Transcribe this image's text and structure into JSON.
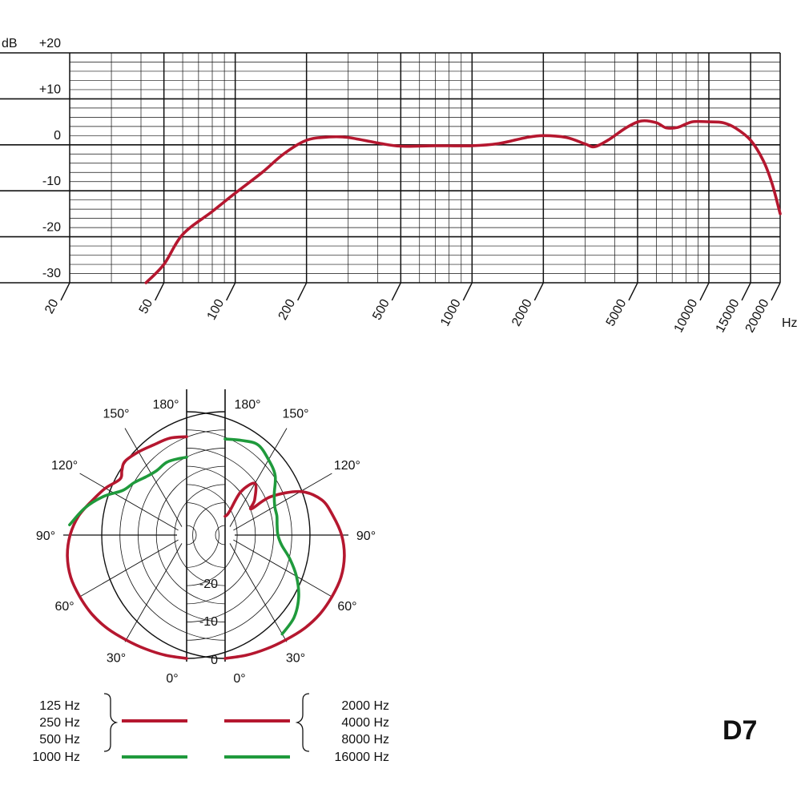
{
  "model": "D7",
  "colors": {
    "red": "#b5172f",
    "green": "#1f9a3c",
    "grid": "#111111"
  },
  "chart_data": [
    {
      "type": "line",
      "ylabel": "dB",
      "xlabel": "Hz",
      "xscale": "log",
      "xlim": [
        20,
        20000
      ],
      "ylim": [
        -30,
        20
      ],
      "x_ticks": [
        20,
        50,
        100,
        200,
        500,
        1000,
        2000,
        5000,
        10000,
        15000,
        20000
      ],
      "x_tick_labels": [
        "20",
        "50",
        "100",
        "200",
        "500",
        "1000",
        "2000",
        "5000",
        "10000",
        "15000",
        "20000"
      ],
      "y_ticks": [
        20,
        10,
        0,
        -10,
        -20,
        -30
      ],
      "y_tick_labels": [
        "+20",
        "+10",
        "0",
        "-10",
        "-20",
        "-30"
      ],
      "grid": true,
      "series": [
        {
          "color": "#b5172f",
          "points": [
            [
              42,
              -30
            ],
            [
              50,
              -26
            ],
            [
              60,
              -19.5
            ],
            [
              80,
              -14.5
            ],
            [
              100,
              -10.5
            ],
            [
              130,
              -6
            ],
            [
              160,
              -2
            ],
            [
              200,
              1
            ],
            [
              250,
              1.7
            ],
            [
              300,
              1.6
            ],
            [
              400,
              0.4
            ],
            [
              500,
              -0.3
            ],
            [
              700,
              -0.2
            ],
            [
              1000,
              -0.2
            ],
            [
              1300,
              0.3
            ],
            [
              1700,
              1.6
            ],
            [
              2000,
              2
            ],
            [
              2500,
              1.6
            ],
            [
              3000,
              0.2
            ],
            [
              3300,
              -0.4
            ],
            [
              3800,
              1.2
            ],
            [
              4500,
              3.8
            ],
            [
              5200,
              5.2
            ],
            [
              6000,
              4.8
            ],
            [
              6600,
              3.7
            ],
            [
              7400,
              3.8
            ],
            [
              8500,
              5
            ],
            [
              10000,
              5
            ],
            [
              11500,
              4.8
            ],
            [
              13000,
              3.6
            ],
            [
              15000,
              1
            ],
            [
              17000,
              -3.5
            ],
            [
              18500,
              -8.5
            ],
            [
              20000,
              -15
            ]
          ]
        }
      ]
    },
    {
      "type": "polar",
      "angle_labels_left": [
        "180°",
        "150°",
        "120°",
        "90°",
        "60°",
        "30°",
        "0°"
      ],
      "angle_labels_right": [
        "180°",
        "150°",
        "120°",
        "90°",
        "60°",
        "30°",
        "0°"
      ],
      "radial_labels": [
        "-20",
        "-10",
        "0"
      ],
      "radial_range": [
        -25,
        0
      ],
      "grid": true,
      "left_curves": [
        {
          "color": "#b5172f",
          "points": [
            [
              0,
              0
            ],
            [
              10,
              -0.3
            ],
            [
              20,
              -0.5
            ],
            [
              30,
              -0.5
            ],
            [
              40,
              -0.2
            ],
            [
              50,
              0
            ],
            [
              60,
              0
            ],
            [
              70,
              0
            ],
            [
              80,
              -0.5
            ],
            [
              90,
              -1.5
            ],
            [
              100,
              -3
            ],
            [
              110,
              -5
            ],
            [
              120,
              -6.5
            ],
            [
              130,
              -8
            ],
            [
              135,
              -7
            ],
            [
              140,
              -6
            ],
            [
              150,
              -6
            ],
            [
              160,
              -6
            ],
            [
              170,
              -5.5
            ],
            [
              180,
              -5.5
            ]
          ]
        },
        {
          "color": "#1f9a3c",
          "points": [
            [
              95,
              -1.3
            ],
            [
              105,
              -4
            ],
            [
              115,
              -7
            ],
            [
              125,
              -10
            ],
            [
              135,
              -10.8
            ],
            [
              145,
              -11.5
            ],
            [
              155,
              -11.5
            ],
            [
              165,
              -10.5
            ],
            [
              175,
              -10.2
            ],
            [
              180,
              -10
            ]
          ]
        }
      ],
      "right_curves": [
        {
          "color": "#b5172f",
          "points": [
            [
              0,
              0
            ],
            [
              10,
              -0.3
            ],
            [
              20,
              -0.5
            ],
            [
              30,
              -0.5
            ],
            [
              40,
              -0.2
            ],
            [
              50,
              0
            ],
            [
              60,
              0
            ],
            [
              70,
              0
            ],
            [
              80,
              -0.5
            ],
            [
              90,
              -1.5
            ],
            [
              100,
              -3
            ],
            [
              110,
              -4.5
            ],
            [
              120,
              -8
            ],
            [
              130,
              -14
            ],
            [
              135,
              -19
            ],
            [
              140,
              -17
            ],
            [
              150,
              -14
            ],
            [
              160,
              -17
            ],
            [
              170,
              -22
            ],
            [
              180,
              -23
            ]
          ]
        },
        {
          "color": "#1f9a3c",
          "points": [
            [
              30,
              -2
            ],
            [
              40,
              -3.5
            ],
            [
              50,
              -6
            ],
            [
              60,
              -9
            ],
            [
              70,
              -12
            ],
            [
              80,
              -14.5
            ],
            [
              90,
              -15.5
            ],
            [
              100,
              -15.5
            ],
            [
              110,
              -15
            ],
            [
              120,
              -14.5
            ],
            [
              130,
              -13
            ],
            [
              140,
              -10
            ],
            [
              150,
              -8
            ],
            [
              160,
              -6
            ],
            [
              170,
              -6
            ],
            [
              180,
              -6
            ]
          ]
        }
      ]
    }
  ],
  "legend": {
    "left": {
      "red_labels": [
        "125 Hz",
        "250 Hz",
        "500 Hz"
      ],
      "green_label": "1000 Hz"
    },
    "right": {
      "red_labels": [
        "2000 Hz",
        "4000 Hz",
        "8000 Hz"
      ],
      "green_label": "16000 Hz"
    }
  }
}
